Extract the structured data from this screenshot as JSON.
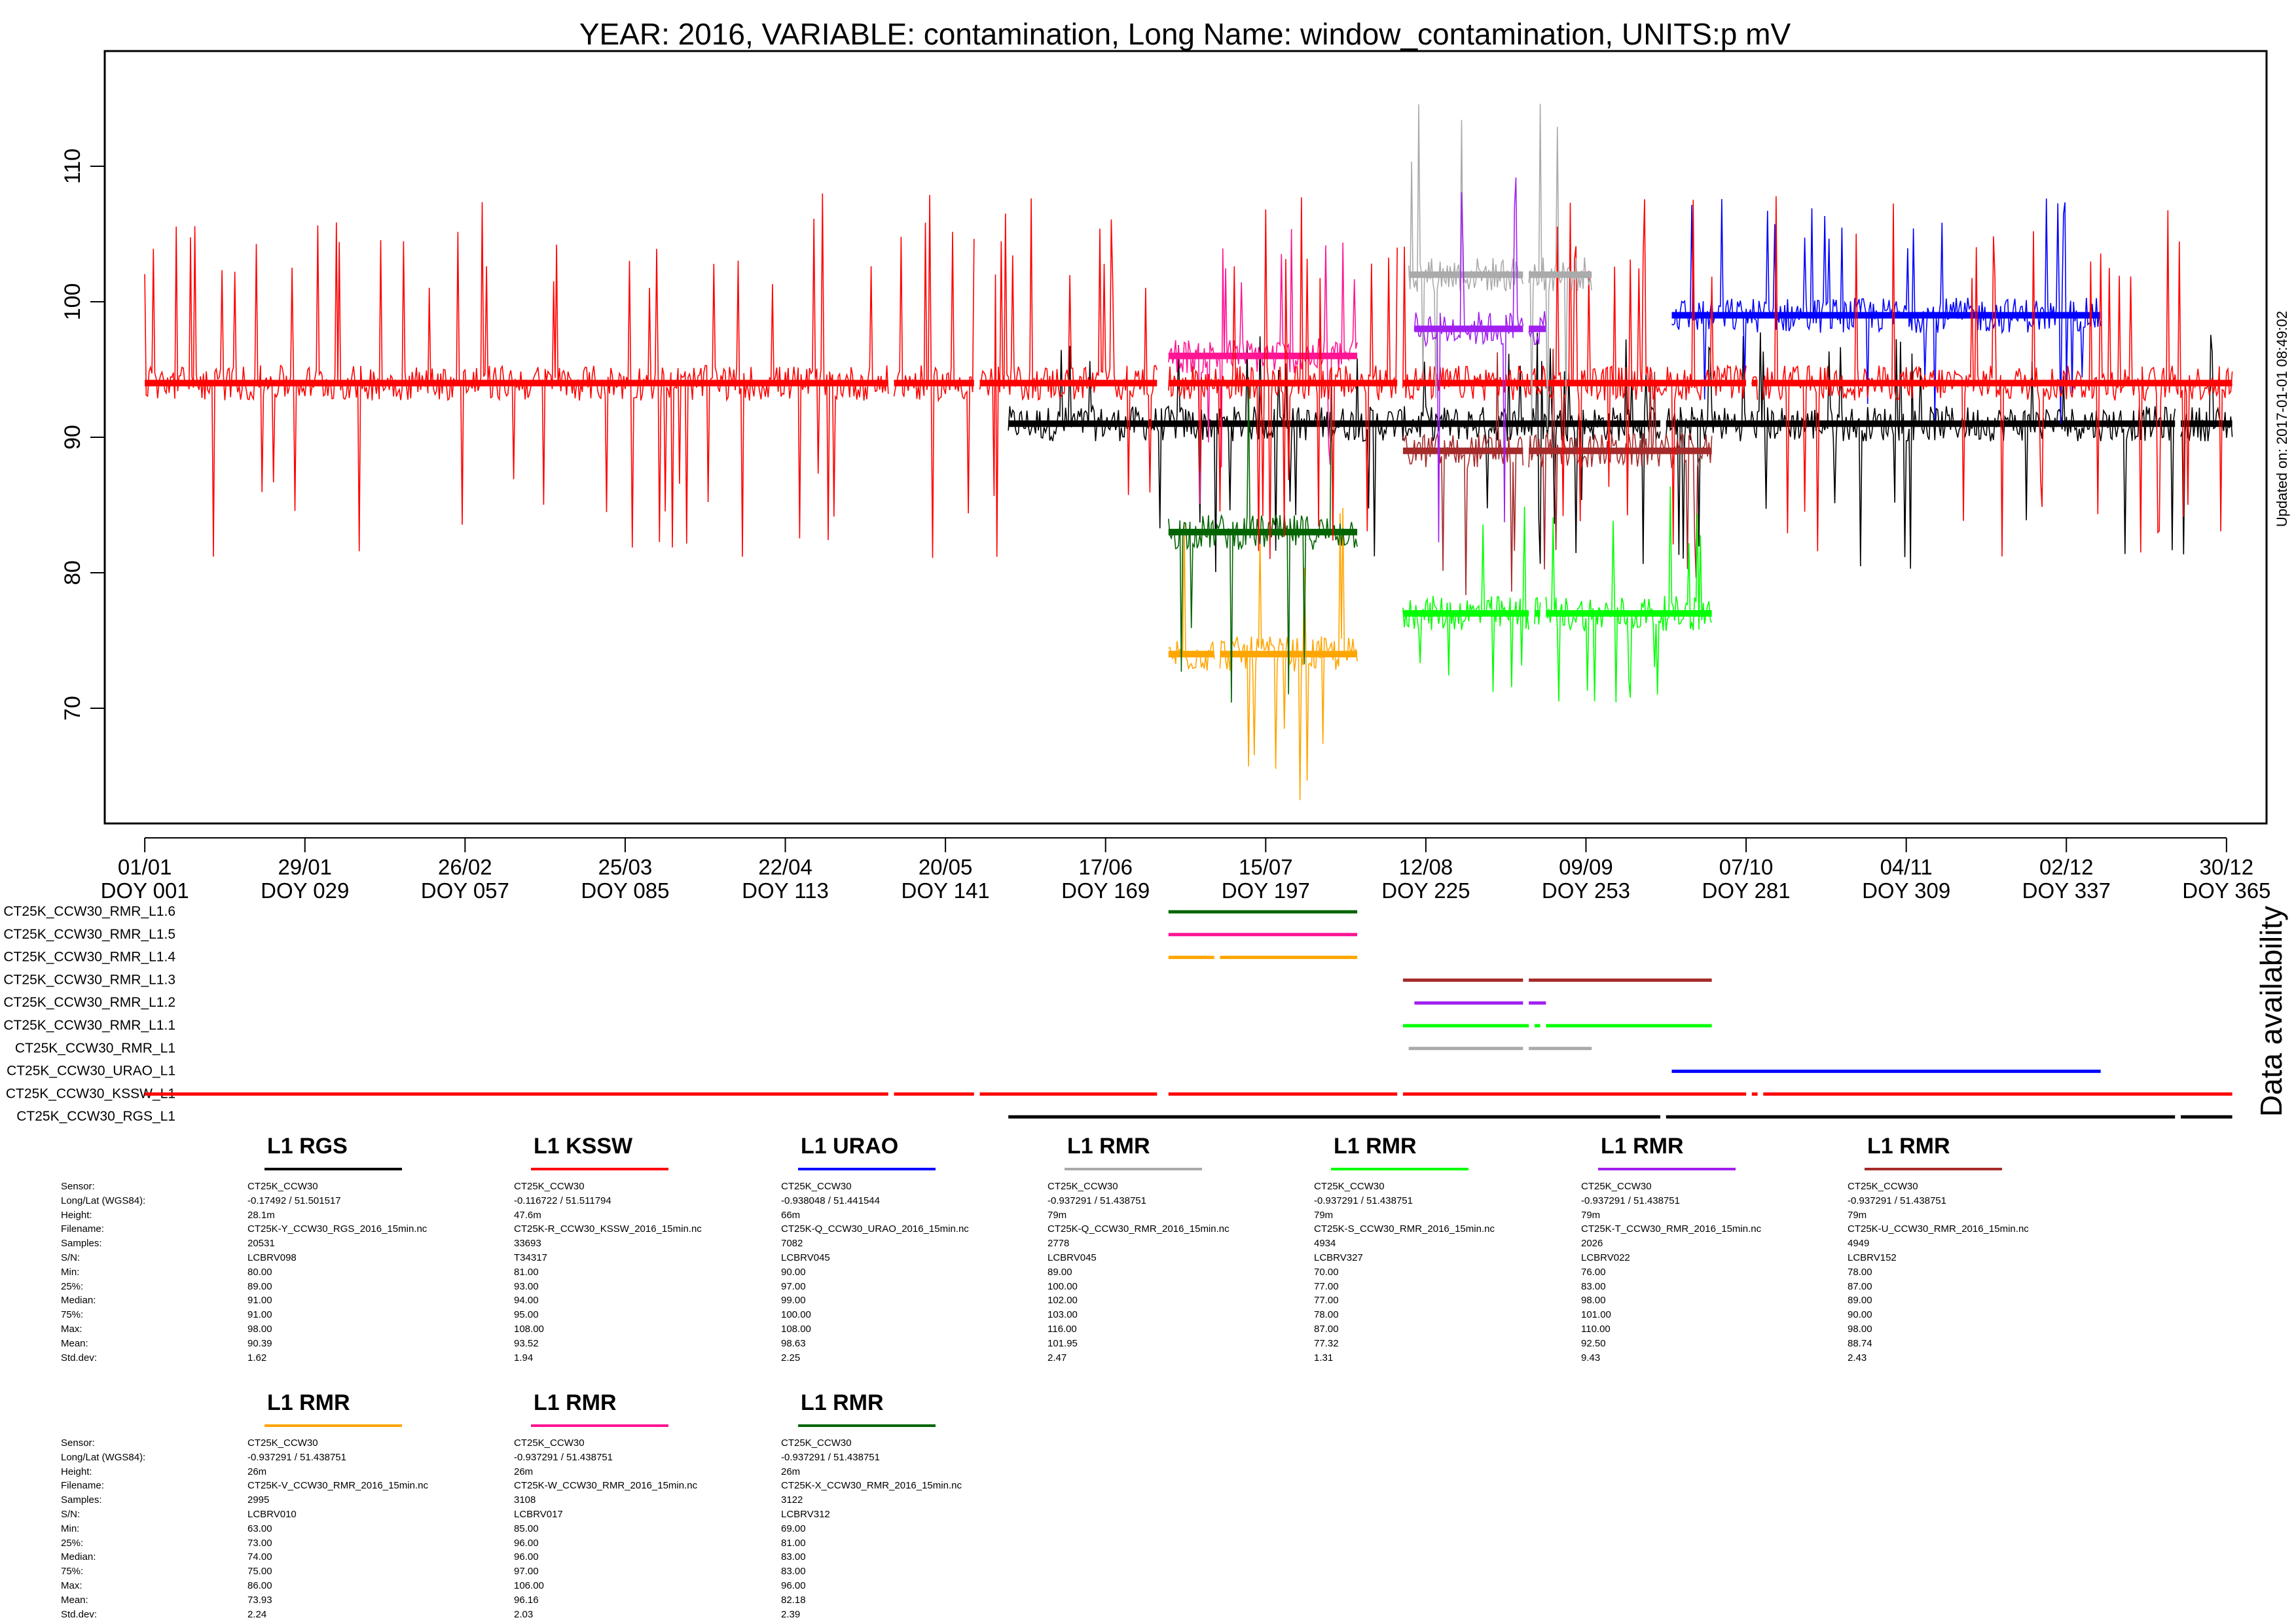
{
  "chart_data": {
    "type": "line",
    "title": "YEAR: 2016, VARIABLE: contamination, Long Name: window_contamination, UNITS:p mV",
    "side_note": "Updated on: 2017-01-01 08:49:02",
    "availability_label": "Data availability",
    "xlabel": "",
    "ylabel": "",
    "xlim": [
      -6,
      372
    ],
    "ylim": [
      61.5,
      118.5
    ],
    "y_ticks": [
      70,
      80,
      90,
      100,
      110
    ],
    "x_ticks": [
      {
        "doy": 1,
        "date": "01/01",
        "label": "DOY 001"
      },
      {
        "doy": 29,
        "date": "29/01",
        "label": "DOY 029"
      },
      {
        "doy": 57,
        "date": "26/02",
        "label": "DOY 057"
      },
      {
        "doy": 85,
        "date": "25/03",
        "label": "DOY 085"
      },
      {
        "doy": 113,
        "date": "22/04",
        "label": "DOY 113"
      },
      {
        "doy": 141,
        "date": "20/05",
        "label": "DOY 141"
      },
      {
        "doy": 169,
        "date": "17/06",
        "label": "DOY 169"
      },
      {
        "doy": 197,
        "date": "15/07",
        "label": "DOY 197"
      },
      {
        "doy": 225,
        "date": "12/08",
        "label": "DOY 225"
      },
      {
        "doy": 253,
        "date": "09/09",
        "label": "DOY 253"
      },
      {
        "doy": 281,
        "date": "07/10",
        "label": "DOY 281"
      },
      {
        "doy": 309,
        "date": "04/11",
        "label": "DOY 309"
      },
      {
        "doy": 337,
        "date": "02/12",
        "label": "DOY 337"
      },
      {
        "doy": 365,
        "date": "30/12",
        "label": "DOY 365"
      }
    ],
    "series": [
      {
        "name": "CT25K_CCW30_RGS_L1",
        "color": "#000000",
        "median": 91,
        "min": 80,
        "max": 98,
        "segments": [
          [
            152,
            266
          ],
          [
            267,
            356
          ],
          [
            357,
            366
          ]
        ]
      },
      {
        "name": "CT25K_CCW30_KSSW_L1",
        "color": "#ff0000",
        "median": 94,
        "min": 81,
        "max": 108,
        "segments": [
          [
            1,
            131
          ],
          [
            132,
            146
          ],
          [
            147,
            178
          ],
          [
            180,
            220
          ],
          [
            221,
            281
          ],
          [
            282,
            283
          ],
          [
            284,
            366
          ]
        ]
      },
      {
        "name": "CT25K_CCW30_URAO_L1",
        "color": "#0000ff",
        "median": 99,
        "min": 90,
        "max": 108,
        "segments": [
          [
            268,
            343
          ]
        ]
      },
      {
        "name": "CT25K_CCW30_RMR_L1",
        "color": "#aaaaaa",
        "median": 102,
        "min": 89,
        "max": 116,
        "segments": [
          [
            222,
            242
          ],
          [
            243,
            254
          ]
        ]
      },
      {
        "name": "CT25K_CCW30_RMR_L1.1",
        "color": "#00ff00",
        "median": 77,
        "min": 70,
        "max": 87,
        "segments": [
          [
            221,
            243
          ],
          [
            244,
            245
          ],
          [
            246,
            275
          ]
        ]
      },
      {
        "name": "CT25K_CCW30_RMR_L1.2",
        "color": "#a020f0",
        "median": 98,
        "min": 76,
        "max": 110,
        "segments": [
          [
            223,
            242
          ],
          [
            243,
            246
          ]
        ]
      },
      {
        "name": "CT25K_CCW30_RMR_L1.3",
        "color": "#a52a2a",
        "median": 89,
        "min": 78,
        "max": 98,
        "segments": [
          [
            221,
            242
          ],
          [
            243,
            275
          ]
        ]
      },
      {
        "name": "CT25K_CCW30_RMR_L1.4",
        "color": "#ffa500",
        "median": 74,
        "min": 63,
        "max": 86,
        "segments": [
          [
            180,
            188
          ],
          [
            189,
            213
          ]
        ]
      },
      {
        "name": "CT25K_CCW30_RMR_L1.5",
        "color": "#ff1493",
        "median": 96,
        "min": 85,
        "max": 106,
        "segments": [
          [
            180,
            213
          ]
        ]
      },
      {
        "name": "CT25K_CCW30_RMR_L1.6",
        "color": "#006400",
        "median": 83,
        "min": 69,
        "max": 96,
        "segments": [
          [
            180,
            213
          ]
        ]
      }
    ]
  },
  "stats_labels": [
    "Sensor:",
    "Long/Lat (WGS84):",
    "Height:",
    "Filename:",
    "Samples:",
    "S/N:",
    "Min:",
    "25%:",
    "Median:",
    "75%:",
    "Max:",
    "Mean:",
    "Std.dev:"
  ],
  "stats": [
    {
      "title": "L1 RGS",
      "color": "#000000",
      "values": [
        "CT25K_CCW30",
        "-0.17492 / 51.501517",
        "28.1m",
        "CT25K-Y_CCW30_RGS_2016_15min.nc",
        "20531",
        "LCBRV098",
        "80.00",
        "89.00",
        "91.00",
        "91.00",
        "98.00",
        "90.39",
        "1.62"
      ]
    },
    {
      "title": "L1 KSSW",
      "color": "#ff0000",
      "values": [
        "CT25K_CCW30",
        "-0.116722 / 51.511794",
        "47.6m",
        "CT25K-R_CCW30_KSSW_2016_15min.nc",
        "33693",
        "T34317",
        "81.00",
        "93.00",
        "94.00",
        "95.00",
        "108.00",
        "93.52",
        "1.94"
      ]
    },
    {
      "title": "L1 URAO",
      "color": "#0000ff",
      "values": [
        "CT25K_CCW30",
        "-0.938048 / 51.441544",
        "66m",
        "CT25K-Q_CCW30_URAO_2016_15min.nc",
        "7082",
        "LCBRV045",
        "90.00",
        "97.00",
        "99.00",
        "100.00",
        "108.00",
        "98.63",
        "2.25"
      ]
    },
    {
      "title": "L1 RMR",
      "color": "#aaaaaa",
      "values": [
        "CT25K_CCW30",
        "-0.937291 / 51.438751",
        "79m",
        "CT25K-Q_CCW30_RMR_2016_15min.nc",
        "2778",
        "LCBRV045",
        "89.00",
        "100.00",
        "102.00",
        "103.00",
        "116.00",
        "101.95",
        "2.47"
      ]
    },
    {
      "title": "L1 RMR",
      "color": "#00ff00",
      "values": [
        "CT25K_CCW30",
        "-0.937291 / 51.438751",
        "79m",
        "CT25K-S_CCW30_RMR_2016_15min.nc",
        "4934",
        "LCBRV327",
        "70.00",
        "77.00",
        "77.00",
        "78.00",
        "87.00",
        "77.32",
        "1.31"
      ]
    },
    {
      "title": "L1 RMR",
      "color": "#a020f0",
      "values": [
        "CT25K_CCW30",
        "-0.937291 / 51.438751",
        "79m",
        "CT25K-T_CCW30_RMR_2016_15min.nc",
        "2026",
        "LCBRV022",
        "76.00",
        "83.00",
        "98.00",
        "101.00",
        "110.00",
        "92.50",
        "9.43"
      ]
    },
    {
      "title": "L1 RMR",
      "color": "#a52a2a",
      "values": [
        "CT25K_CCW30",
        "-0.937291 / 51.438751",
        "79m",
        "CT25K-U_CCW30_RMR_2016_15min.nc",
        "4949",
        "LCBRV152",
        "78.00",
        "87.00",
        "89.00",
        "90.00",
        "98.00",
        "88.74",
        "2.43"
      ]
    },
    {
      "title": "L1 RMR",
      "color": "#ffa500",
      "values": [
        "CT25K_CCW30",
        "-0.937291 / 51.438751",
        "26m",
        "CT25K-V_CCW30_RMR_2016_15min.nc",
        "2995",
        "LCBRV010",
        "63.00",
        "73.00",
        "74.00",
        "75.00",
        "86.00",
        "73.93",
        "2.24"
      ]
    },
    {
      "title": "L1 RMR",
      "color": "#ff1493",
      "values": [
        "CT25K_CCW30",
        "-0.937291 / 51.438751",
        "26m",
        "CT25K-W_CCW30_RMR_2016_15min.nc",
        "3108",
        "LCBRV017",
        "85.00",
        "96.00",
        "96.00",
        "97.00",
        "106.00",
        "96.16",
        "2.03"
      ]
    },
    {
      "title": "L1 RMR",
      "color": "#006400",
      "values": [
        "CT25K_CCW30",
        "-0.937291 / 51.438751",
        "26m",
        "CT25K-X_CCW30_RMR_2016_15min.nc",
        "3122",
        "LCBRV312",
        "69.00",
        "81.00",
        "83.00",
        "83.00",
        "96.00",
        "82.18",
        "2.39"
      ]
    }
  ]
}
